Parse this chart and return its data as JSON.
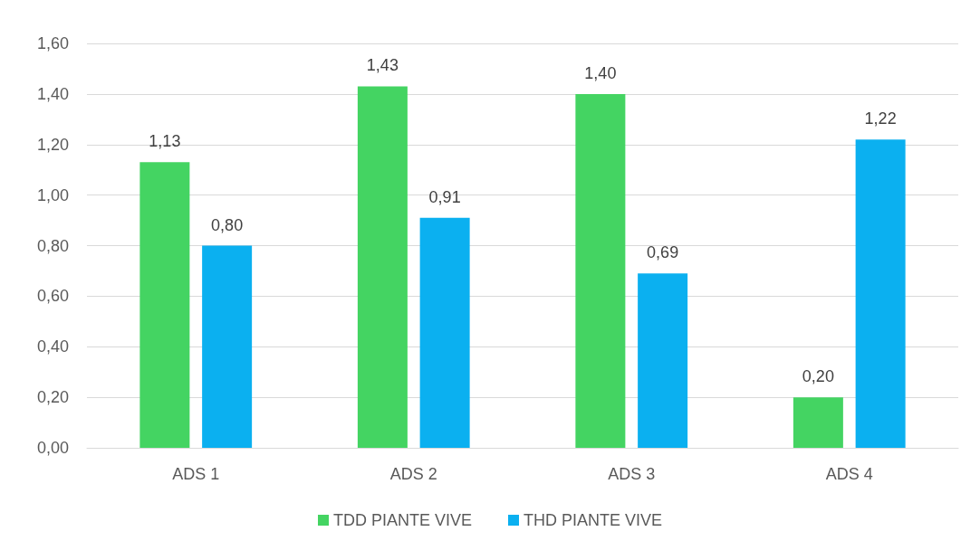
{
  "chart_data": {
    "type": "bar",
    "categories": [
      "ADS 1",
      "ADS 2",
      "ADS 3",
      "ADS 4"
    ],
    "series": [
      {
        "name": "TDD PIANTE VIVE",
        "color": "#44d462",
        "values": [
          1.13,
          1.43,
          1.4,
          0.2
        ],
        "value_labels": [
          "1,13",
          "1,43",
          "1,40",
          "0,20"
        ]
      },
      {
        "name": "THD PIANTE VIVE",
        "color": "#0bb0f0",
        "values": [
          0.8,
          0.91,
          0.69,
          1.22
        ],
        "value_labels": [
          "0,80",
          "0,91",
          "0,69",
          "1,22"
        ]
      }
    ],
    "ylim": [
      0,
      1.6
    ],
    "yticks": [
      {
        "value": 0,
        "label": "0,00"
      },
      {
        "value": 0.2,
        "label": "0,20"
      },
      {
        "value": 0.4,
        "label": "0,40"
      },
      {
        "value": 0.6,
        "label": "0,60"
      },
      {
        "value": 0.8,
        "label": "0,80"
      },
      {
        "value": 1,
        "label": "1,00"
      },
      {
        "value": 1.2,
        "label": "1,20"
      },
      {
        "value": 1.4,
        "label": "1,40"
      },
      {
        "value": 1.6,
        "label": "1,60"
      }
    ],
    "grid": "y",
    "legend": "bottom"
  }
}
